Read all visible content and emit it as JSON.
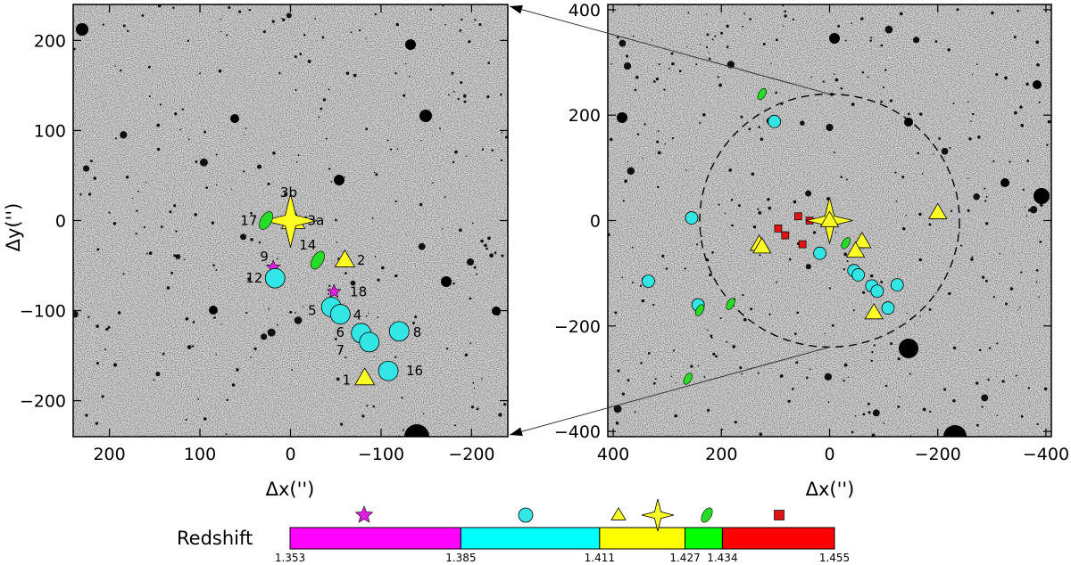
{
  "chart_data": {
    "type": "scatter",
    "left_panel": {
      "xlabel": "Δx('')",
      "ylabel": "Δy('')",
      "xlim": [
        240,
        -240
      ],
      "ylim": [
        -240,
        240
      ],
      "xticks": [
        200,
        100,
        0,
        -100,
        -200
      ],
      "yticks": [
        200,
        100,
        0,
        -100,
        -200
      ],
      "xtick_labels": [
        "200",
        "100",
        "0",
        "−100",
        "−200"
      ],
      "ytick_labels": [
        "200",
        "100",
        "0",
        "−100",
        "−200"
      ],
      "points": [
        {
          "id": "9",
          "shape": "star",
          "color": "#e01fe0",
          "x": 19,
          "y": -52,
          "size": 8
        },
        {
          "id": "18",
          "shape": "star",
          "color": "#e01fe0",
          "x": -48,
          "y": -79,
          "size": 8
        },
        {
          "id": "12",
          "shape": "circle",
          "color": "#33e6e6",
          "x": 17,
          "y": -64,
          "size": 11
        },
        {
          "id": "5",
          "shape": "circle",
          "color": "#33e6e6",
          "x": -45,
          "y": -96,
          "size": 11
        },
        {
          "id": "4",
          "shape": "circle",
          "color": "#33e6e6",
          "x": -55,
          "y": -104,
          "size": 11
        },
        {
          "id": "6",
          "shape": "circle",
          "color": "#33e6e6",
          "x": -78,
          "y": -125,
          "size": 11
        },
        {
          "id": "7",
          "shape": "circle",
          "color": "#33e6e6",
          "x": -87,
          "y": -135,
          "size": 11
        },
        {
          "id": "8",
          "shape": "circle",
          "color": "#33e6e6",
          "x": -120,
          "y": -123,
          "size": 11
        },
        {
          "id": "16",
          "shape": "circle",
          "color": "#33e6e6",
          "x": -108,
          "y": -167,
          "size": 11
        },
        {
          "id": "2",
          "shape": "triangle",
          "color": "#ffff26",
          "x": -60,
          "y": -44,
          "size": 11
        },
        {
          "id": "1",
          "shape": "triangle",
          "color": "#ffff26",
          "x": -82,
          "y": -175,
          "size": 11
        },
        {
          "id": "3a",
          "shape": "triangle",
          "color": "#ffff26",
          "x": -3,
          "y": 0,
          "size": 13
        },
        {
          "id": "3b",
          "shape": "bigstar",
          "color": "#ffff26",
          "x": 0,
          "y": 0,
          "size": 30
        },
        {
          "id": "17",
          "shape": "ellipse",
          "color": "#26dd26",
          "x": 27,
          "y": 0,
          "size": 11
        },
        {
          "id": "14",
          "shape": "ellipse",
          "color": "#26dd26",
          "x": -30,
          "y": -44,
          "size": 11
        }
      ],
      "labels": [
        {
          "text": "3b",
          "x": 2,
          "y": 31
        },
        {
          "text": "17",
          "x": 46,
          "y": 0
        },
        {
          "text": "3a",
          "x": -28,
          "y": 0
        },
        {
          "text": "14",
          "x": -19,
          "y": -27
        },
        {
          "text": "2",
          "x": -78,
          "y": -44
        },
        {
          "text": "9",
          "x": 29,
          "y": -40
        },
        {
          "text": "12",
          "x": 40,
          "y": -64
        },
        {
          "text": "18",
          "x": -75,
          "y": -79
        },
        {
          "text": "5",
          "x": -24,
          "y": -100
        },
        {
          "text": "4",
          "x": -74,
          "y": -105
        },
        {
          "text": "6",
          "x": -55,
          "y": -124
        },
        {
          "text": "7",
          "x": -55,
          "y": -144
        },
        {
          "text": "8",
          "x": -140,
          "y": -124
        },
        {
          "text": "1",
          "x": -62,
          "y": -177
        },
        {
          "text": "16",
          "x": -137,
          "y": -167
        }
      ]
    },
    "right_panel": {
      "xlabel": "Δx('')",
      "xlim": [
        410,
        -410
      ],
      "ylim": [
        -410,
        410
      ],
      "xticks": [
        400,
        200,
        0,
        -200,
        -400
      ],
      "yticks": [
        400,
        200,
        0,
        -200,
        -400
      ],
      "xtick_labels": [
        "400",
        "200",
        "0",
        "−200",
        "−400"
      ],
      "ytick_labels": [
        "400",
        "200",
        "0",
        "−200",
        "−400"
      ],
      "circle_radius": 240,
      "points": [
        {
          "shape": "circle",
          "color": "#33e6e6",
          "x": 102,
          "y": 188,
          "size": 7
        },
        {
          "shape": "circle",
          "color": "#33e6e6",
          "x": 255,
          "y": 5,
          "size": 7
        },
        {
          "shape": "circle",
          "color": "#33e6e6",
          "x": 335,
          "y": -115,
          "size": 7
        },
        {
          "shape": "circle",
          "color": "#33e6e6",
          "x": 243,
          "y": -160,
          "size": 7
        },
        {
          "shape": "circle",
          "color": "#33e6e6",
          "x": 18,
          "y": -62,
          "size": 7
        },
        {
          "shape": "circle",
          "color": "#33e6e6",
          "x": -45,
          "y": -95,
          "size": 7
        },
        {
          "shape": "circle",
          "color": "#33e6e6",
          "x": -53,
          "y": -103,
          "size": 7
        },
        {
          "shape": "circle",
          "color": "#33e6e6",
          "x": -78,
          "y": -124,
          "size": 7
        },
        {
          "shape": "circle",
          "color": "#33e6e6",
          "x": -88,
          "y": -134,
          "size": 7
        },
        {
          "shape": "circle",
          "color": "#33e6e6",
          "x": -125,
          "y": -122,
          "size": 7
        },
        {
          "shape": "circle",
          "color": "#33e6e6",
          "x": -108,
          "y": -166,
          "size": 7
        },
        {
          "shape": "ellipse",
          "color": "#26dd26",
          "x": 125,
          "y": 240,
          "size": 7
        },
        {
          "shape": "ellipse",
          "color": "#26dd26",
          "x": 183,
          "y": -158,
          "size": 7
        },
        {
          "shape": "ellipse",
          "color": "#26dd26",
          "x": 240,
          "y": -170,
          "size": 7
        },
        {
          "shape": "ellipse",
          "color": "#26dd26",
          "x": 262,
          "y": -300,
          "size": 7
        },
        {
          "shape": "ellipse",
          "color": "#26dd26",
          "x": -30,
          "y": -43,
          "size": 7
        },
        {
          "shape": "square",
          "color": "#e01414",
          "x": 95,
          "y": -15,
          "size": 8
        },
        {
          "shape": "square",
          "color": "#e01414",
          "x": 82,
          "y": -28,
          "size": 8
        },
        {
          "shape": "square",
          "color": "#e01414",
          "x": 58,
          "y": 8,
          "size": 8
        },
        {
          "shape": "square",
          "color": "#e01414",
          "x": 37,
          "y": 0,
          "size": 8
        },
        {
          "shape": "square",
          "color": "#e01414",
          "x": 50,
          "y": -45,
          "size": 8
        },
        {
          "shape": "triangle",
          "color": "#ffff26",
          "x": 130,
          "y": -45,
          "size": 10
        },
        {
          "shape": "triangle",
          "color": "#ffff26",
          "x": 125,
          "y": -50,
          "size": 10
        },
        {
          "shape": "triangle",
          "color": "#ffff26",
          "x": -60,
          "y": -40,
          "size": 10
        },
        {
          "shape": "triangle",
          "color": "#ffff26",
          "x": -48,
          "y": -58,
          "size": 10
        },
        {
          "shape": "triangle",
          "color": "#ffff26",
          "x": -82,
          "y": -175,
          "size": 10
        },
        {
          "shape": "triangle",
          "color": "#ffff26",
          "x": -200,
          "y": 15,
          "size": 10
        },
        {
          "shape": "bigstar",
          "color": "#ffff26",
          "x": 0,
          "y": 0,
          "size": 26
        },
        {
          "shape": "triangle",
          "color": "#ffff26",
          "x": 0,
          "y": 0,
          "size": 10
        }
      ]
    },
    "colorbar": {
      "label": "Redshift",
      "segments": [
        {
          "from": 1.353,
          "to": 1.385,
          "color": "#ff00ff",
          "marker": "star"
        },
        {
          "from": 1.385,
          "to": 1.411,
          "color": "#00ffff",
          "marker": "circle"
        },
        {
          "from": 1.411,
          "to": 1.427,
          "color": "#ffff00",
          "marker": "triangle+bigstar"
        },
        {
          "from": 1.427,
          "to": 1.434,
          "color": "#00ff00",
          "marker": "ellipse"
        },
        {
          "from": 1.434,
          "to": 1.455,
          "color": "#ff0000",
          "marker": "square"
        }
      ],
      "tick_labels": [
        "1.353",
        "1.385",
        "1.411",
        "1.427",
        "1.434",
        "1.455"
      ]
    }
  }
}
